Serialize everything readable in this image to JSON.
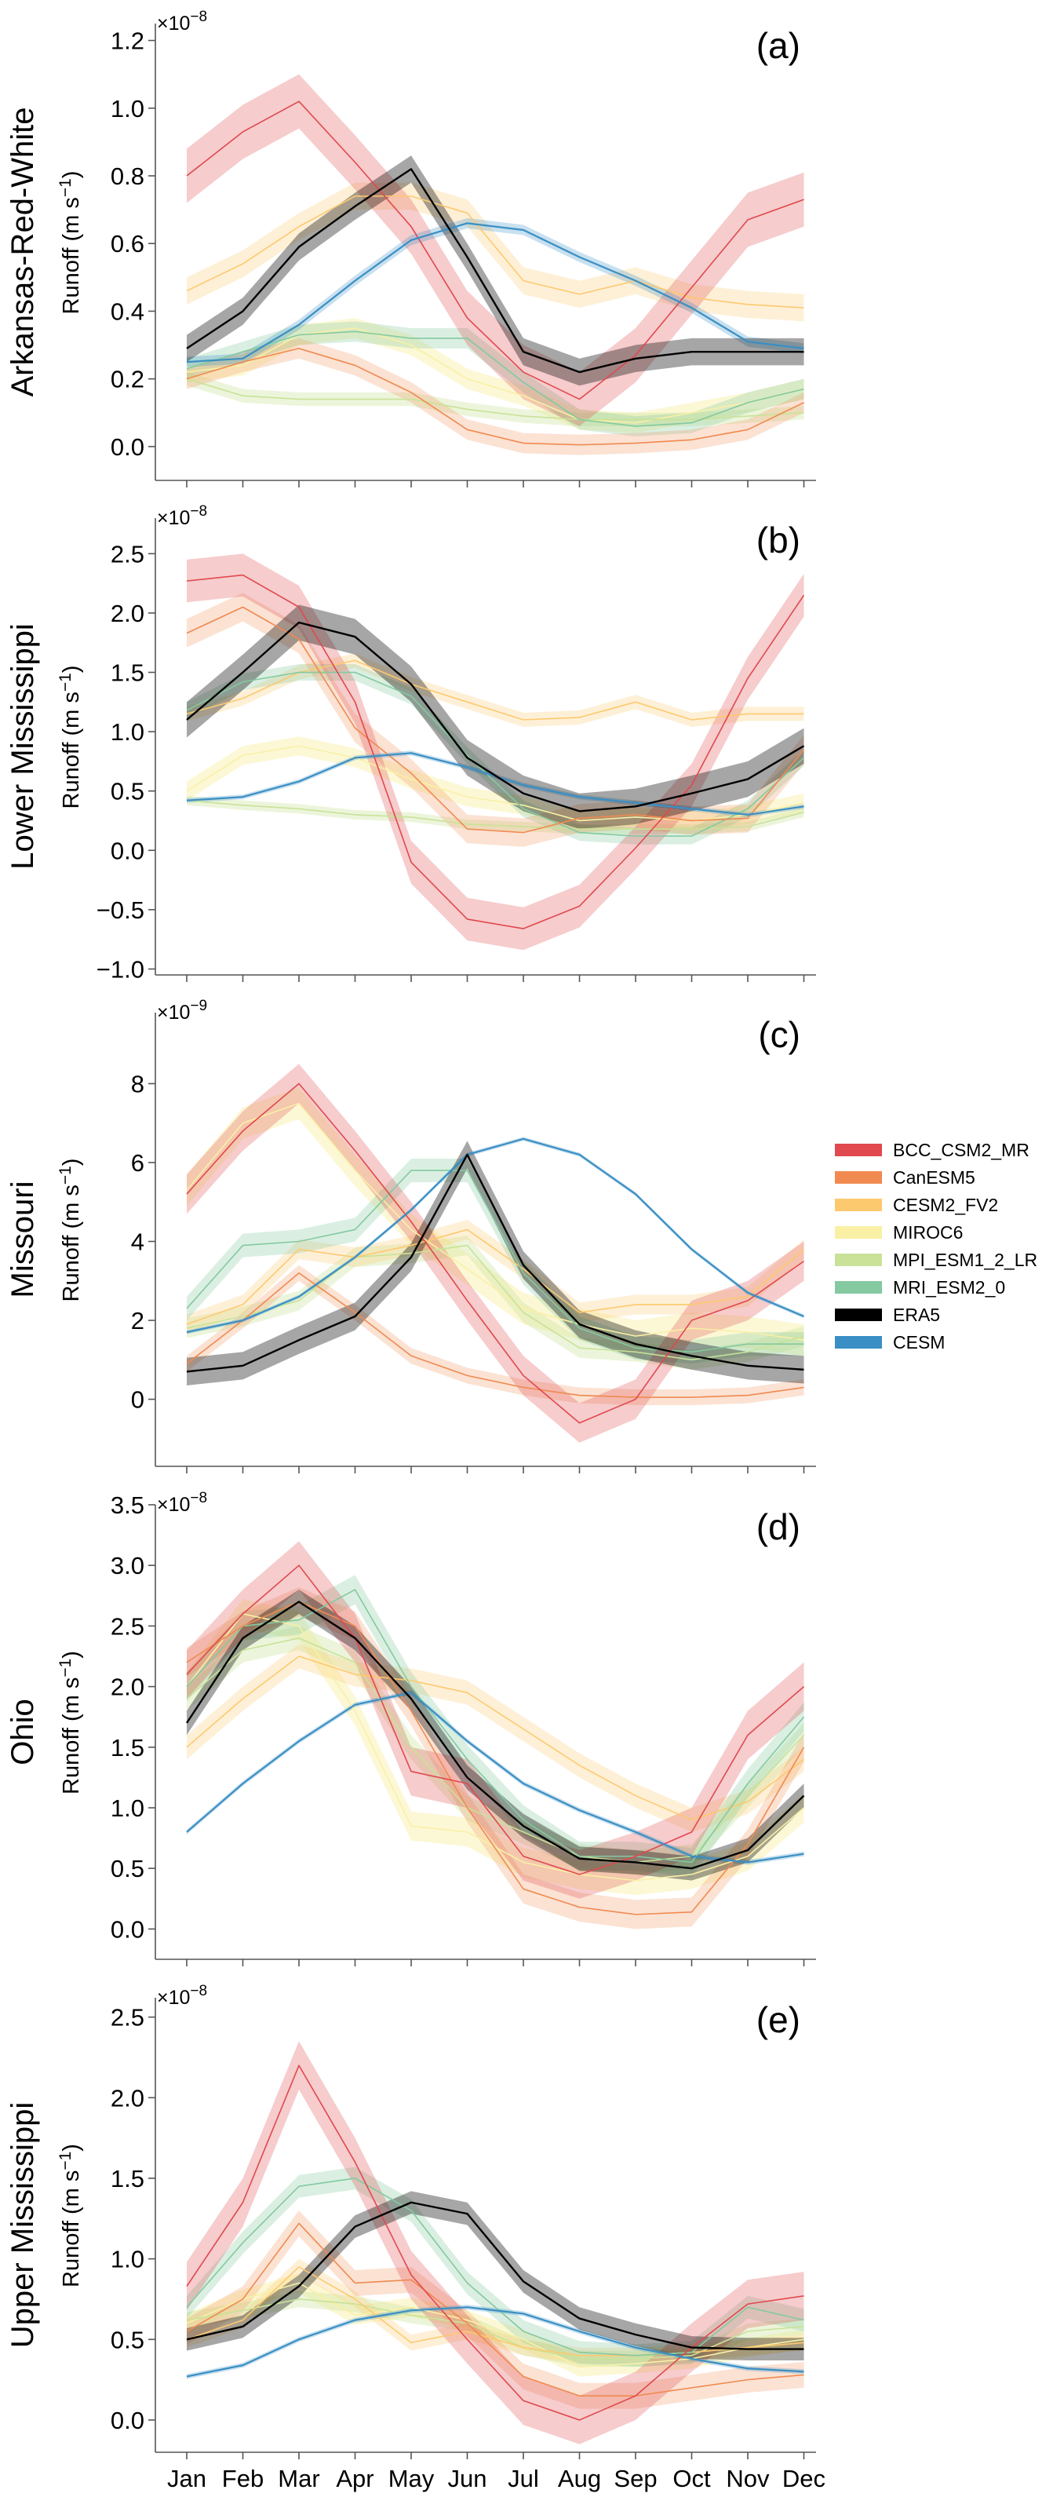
{
  "figure": {
    "months": [
      "Jan",
      "Feb",
      "Mar",
      "Apr",
      "May",
      "Jun",
      "Jul",
      "Aug",
      "Sep",
      "Oct",
      "Nov",
      "Dec"
    ],
    "ylabel_text": "Runoff (m s",
    "ylabel_exp": "−1",
    "ylabel_close": ")",
    "multiplier_prefix": "×10"
  },
  "legend": [
    {
      "name": "BCC_CSM2_MR",
      "color": "#e0494d"
    },
    {
      "name": "CanESM5",
      "color": "#f08a50"
    },
    {
      "name": "CESM2_FV2",
      "color": "#fdc96e"
    },
    {
      "name": "MIROC6",
      "color": "#f9f0a5"
    },
    {
      "name": "MPI_ESM1_2_LR",
      "color": "#c9e298"
    },
    {
      "name": "MRI_ESM2_0",
      "color": "#84c9a0"
    },
    {
      "name": "ERA5",
      "color": "#000000"
    },
    {
      "name": "CESM",
      "color": "#3a8fc4"
    }
  ],
  "chart_data": [
    {
      "type": "line",
      "panel": "(a)",
      "basin": "Arkansas-Red-White",
      "exponent": "−8",
      "ylim": [
        -0.1,
        1.25
      ],
      "yticks": [
        0.0,
        0.2,
        0.4,
        0.6,
        0.8,
        1.0,
        1.2
      ],
      "ytick_labels": [
        "0.0",
        "0.2",
        "0.4",
        "0.6",
        "0.8",
        "1.0",
        "1.2"
      ],
      "series": [
        {
          "name": "BCC_CSM2_MR",
          "values": [
            0.8,
            0.93,
            1.02,
            0.84,
            0.65,
            0.38,
            0.22,
            0.14,
            0.27,
            0.47,
            0.67,
            0.73
          ],
          "band": 0.08
        },
        {
          "name": "CanESM5",
          "values": [
            0.2,
            0.25,
            0.29,
            0.24,
            0.16,
            0.05,
            0.01,
            0.005,
            0.01,
            0.02,
            0.05,
            0.13
          ],
          "band": 0.03
        },
        {
          "name": "CESM2_FV2",
          "values": [
            0.46,
            0.54,
            0.65,
            0.74,
            0.74,
            0.69,
            0.49,
            0.45,
            0.49,
            0.44,
            0.42,
            0.41
          ],
          "band": 0.04
        },
        {
          "name": "MIROC6",
          "values": [
            0.22,
            0.24,
            0.33,
            0.35,
            0.3,
            0.2,
            0.15,
            0.08,
            0.07,
            0.1,
            0.13,
            0.17
          ],
          "band": 0.03
        },
        {
          "name": "MPI_ESM1_2_LR",
          "values": [
            0.2,
            0.15,
            0.14,
            0.14,
            0.14,
            0.11,
            0.09,
            0.08,
            0.08,
            0.08,
            0.09,
            0.1
          ],
          "band": 0.02
        },
        {
          "name": "MRI_ESM2_0",
          "values": [
            0.23,
            0.28,
            0.33,
            0.34,
            0.32,
            0.32,
            0.19,
            0.08,
            0.06,
            0.07,
            0.13,
            0.17
          ],
          "band": 0.03
        },
        {
          "name": "ERA5",
          "values": [
            0.29,
            0.4,
            0.59,
            0.71,
            0.82,
            0.56,
            0.28,
            0.22,
            0.26,
            0.28,
            0.28,
            0.28
          ],
          "band": 0.04
        },
        {
          "name": "CESM",
          "values": [
            0.25,
            0.26,
            0.36,
            0.49,
            0.61,
            0.66,
            0.64,
            0.56,
            0.49,
            0.41,
            0.31,
            0.29
          ],
          "band": 0.015
        }
      ]
    },
    {
      "type": "line",
      "panel": "(b)",
      "basin": "Lower Mississippi",
      "exponent": "−8",
      "ylim": [
        -1.05,
        2.8
      ],
      "yticks": [
        -1.0,
        -0.5,
        0.0,
        0.5,
        1.0,
        1.5,
        2.0,
        2.5
      ],
      "ytick_labels": [
        "−1.0",
        "−0.5",
        "0.0",
        "0.5",
        "1.0",
        "1.5",
        "2.0",
        "2.5"
      ],
      "series": [
        {
          "name": "BCC_CSM2_MR",
          "values": [
            2.27,
            2.32,
            2.05,
            1.25,
            -0.1,
            -0.58,
            -0.66,
            -0.47,
            0.02,
            0.55,
            1.45,
            2.15
          ],
          "band": 0.18
        },
        {
          "name": "CanESM5",
          "values": [
            1.83,
            2.05,
            1.78,
            1.03,
            0.65,
            0.18,
            0.15,
            0.27,
            0.3,
            0.25,
            0.27,
            0.85
          ],
          "band": 0.12
        },
        {
          "name": "CESM2_FV2",
          "values": [
            1.15,
            1.28,
            1.5,
            1.6,
            1.4,
            1.25,
            1.1,
            1.12,
            1.25,
            1.1,
            1.15,
            1.15
          ],
          "band": 0.06
        },
        {
          "name": "MIROC6",
          "values": [
            0.5,
            0.8,
            0.88,
            0.78,
            0.6,
            0.45,
            0.38,
            0.25,
            0.28,
            0.25,
            0.3,
            0.4
          ],
          "band": 0.08
        },
        {
          "name": "MPI_ESM1_2_LR",
          "values": [
            0.42,
            0.38,
            0.35,
            0.3,
            0.28,
            0.22,
            0.2,
            0.18,
            0.18,
            0.18,
            0.2,
            0.32
          ],
          "band": 0.04
        },
        {
          "name": "MRI_ESM2_0",
          "values": [
            1.18,
            1.42,
            1.5,
            1.5,
            1.3,
            0.8,
            0.35,
            0.15,
            0.12,
            0.12,
            0.35,
            0.78
          ],
          "band": 0.07
        },
        {
          "name": "ERA5",
          "values": [
            1.1,
            1.5,
            1.92,
            1.8,
            1.4,
            0.78,
            0.48,
            0.33,
            0.37,
            0.48,
            0.6,
            0.88
          ],
          "band": 0.15
        },
        {
          "name": "CESM",
          "values": [
            0.42,
            0.45,
            0.58,
            0.78,
            0.82,
            0.7,
            0.55,
            0.45,
            0.4,
            0.35,
            0.3,
            0.37
          ],
          "band": 0.02
        }
      ]
    },
    {
      "type": "line",
      "panel": "(c)",
      "basin": "Missouri",
      "exponent": "−9",
      "ylim": [
        -1.7,
        9.8
      ],
      "yticks": [
        0,
        2,
        4,
        6,
        8
      ],
      "ytick_labels": [
        "0",
        "2",
        "4",
        "6",
        "8"
      ],
      "series": [
        {
          "name": "BCC_CSM2_MR",
          "values": [
            5.2,
            6.8,
            8.0,
            6.3,
            4.5,
            2.5,
            0.6,
            -0.6,
            0.0,
            2.0,
            2.5,
            3.5
          ],
          "band": 0.5
        },
        {
          "name": "CanESM5",
          "values": [
            0.9,
            2.0,
            3.2,
            2.2,
            1.1,
            0.6,
            0.3,
            0.1,
            0.05,
            0.05,
            0.1,
            0.3
          ],
          "band": 0.2
        },
        {
          "name": "CESM2_FV2",
          "values": [
            1.9,
            2.4,
            3.8,
            3.6,
            3.9,
            4.3,
            3.3,
            2.2,
            2.4,
            2.4,
            2.6,
            3.8
          ],
          "band": 0.25
        },
        {
          "name": "MIROC6",
          "values": [
            5.3,
            7.0,
            7.5,
            5.8,
            4.3,
            3.3,
            2.3,
            1.9,
            1.6,
            1.8,
            1.7,
            1.5
          ],
          "band": 0.4
        },
        {
          "name": "MPI_ESM1_2_LR",
          "values": [
            1.8,
            2.1,
            2.5,
            3.6,
            3.7,
            3.9,
            2.2,
            1.3,
            1.2,
            1.0,
            1.2,
            1.6
          ],
          "band": 0.25
        },
        {
          "name": "MRI_ESM2_0",
          "values": [
            2.3,
            3.9,
            4.0,
            4.3,
            5.8,
            5.8,
            3.2,
            1.8,
            1.3,
            1.2,
            1.4,
            1.4
          ],
          "band": 0.3
        },
        {
          "name": "ERA5",
          "values": [
            0.7,
            0.85,
            1.5,
            2.1,
            3.6,
            6.2,
            3.4,
            1.9,
            1.4,
            1.1,
            0.85,
            0.75
          ],
          "band": 0.35
        },
        {
          "name": "CESM",
          "values": [
            1.7,
            2.0,
            2.6,
            3.6,
            4.8,
            6.2,
            6.6,
            6.2,
            5.2,
            3.8,
            2.7,
            2.1
          ],
          "band": 0.05
        }
      ]
    },
    {
      "type": "line",
      "panel": "(d)",
      "basin": "Ohio",
      "exponent": "−8",
      "ylim": [
        -0.25,
        3.5
      ],
      "yticks": [
        0.0,
        0.5,
        1.0,
        1.5,
        2.0,
        2.5,
        3.0,
        3.5
      ],
      "ytick_labels": [
        "0.0",
        "0.5",
        "1.0",
        "1.5",
        "2.0",
        "2.5",
        "3.0",
        "3.5"
      ],
      "series": [
        {
          "name": "BCC_CSM2_MR",
          "values": [
            2.1,
            2.6,
            3.0,
            2.4,
            1.3,
            1.2,
            0.6,
            0.45,
            0.6,
            0.8,
            1.6,
            2.0
          ],
          "band": 0.2
        },
        {
          "name": "CanESM5",
          "values": [
            2.2,
            2.5,
            2.7,
            2.5,
            1.8,
            1.0,
            0.33,
            0.18,
            0.12,
            0.14,
            0.7,
            1.5
          ],
          "band": 0.12
        },
        {
          "name": "CESM2_FV2",
          "values": [
            1.5,
            1.9,
            2.25,
            2.1,
            2.05,
            1.95,
            1.65,
            1.35,
            1.1,
            0.9,
            1.05,
            1.4
          ],
          "band": 0.1
        },
        {
          "name": "MIROC6",
          "values": [
            2.0,
            2.6,
            2.5,
            1.8,
            0.85,
            0.8,
            0.55,
            0.45,
            0.4,
            0.45,
            0.6,
            1.0
          ],
          "band": 0.12
        },
        {
          "name": "MPI_ESM1_2_LR",
          "values": [
            1.9,
            2.3,
            2.4,
            2.2,
            1.5,
            1.0,
            0.8,
            0.6,
            0.55,
            0.6,
            1.1,
            1.6
          ],
          "band": 0.1
        },
        {
          "name": "MRI_ESM2_0",
          "values": [
            2.0,
            2.5,
            2.55,
            2.8,
            2.0,
            1.4,
            0.9,
            0.6,
            0.6,
            0.55,
            1.2,
            1.75
          ],
          "band": 0.12
        },
        {
          "name": "ERA5",
          "values": [
            1.7,
            2.4,
            2.7,
            2.4,
            1.9,
            1.25,
            0.85,
            0.58,
            0.55,
            0.5,
            0.65,
            1.1
          ],
          "band": 0.1
        },
        {
          "name": "CESM",
          "values": [
            0.8,
            1.2,
            1.55,
            1.85,
            1.95,
            1.55,
            1.2,
            0.98,
            0.8,
            0.6,
            0.55,
            0.62
          ],
          "band": 0.02
        }
      ]
    },
    {
      "type": "line",
      "panel": "(e)",
      "basin": "Upper Mississippi",
      "exponent": "−8",
      "ylim": [
        -0.2,
        2.62
      ],
      "yticks": [
        0.0,
        0.5,
        1.0,
        1.5,
        2.0,
        2.5
      ],
      "ytick_labels": [
        "0.0",
        "0.5",
        "1.0",
        "1.5",
        "2.0",
        "2.5"
      ],
      "series": [
        {
          "name": "BCC_CSM2_MR",
          "values": [
            0.83,
            1.35,
            2.2,
            1.6,
            0.9,
            0.5,
            0.12,
            0.0,
            0.15,
            0.45,
            0.72,
            0.77
          ],
          "band": 0.15
        },
        {
          "name": "CanESM5",
          "values": [
            0.55,
            0.75,
            1.22,
            0.85,
            0.87,
            0.6,
            0.27,
            0.15,
            0.15,
            0.2,
            0.25,
            0.28
          ],
          "band": 0.08
        },
        {
          "name": "CESM2_FV2",
          "values": [
            0.5,
            0.62,
            0.95,
            0.75,
            0.48,
            0.55,
            0.45,
            0.4,
            0.4,
            0.42,
            0.45,
            0.48
          ],
          "band": 0.05
        },
        {
          "name": "MIROC6",
          "values": [
            0.6,
            0.75,
            0.85,
            0.65,
            0.7,
            0.62,
            0.5,
            0.33,
            0.35,
            0.38,
            0.45,
            0.5
          ],
          "band": 0.06
        },
        {
          "name": "MPI_ESM1_2_LR",
          "values": [
            0.62,
            0.68,
            0.75,
            0.72,
            0.65,
            0.6,
            0.45,
            0.38,
            0.38,
            0.4,
            0.55,
            0.58
          ],
          "band": 0.05
        },
        {
          "name": "MRI_ESM2_0",
          "values": [
            0.7,
            1.1,
            1.45,
            1.5,
            1.3,
            0.85,
            0.55,
            0.42,
            0.4,
            0.42,
            0.7,
            0.62
          ],
          "band": 0.07
        },
        {
          "name": "ERA5",
          "values": [
            0.5,
            0.58,
            0.83,
            1.2,
            1.35,
            1.28,
            0.86,
            0.63,
            0.53,
            0.45,
            0.44,
            0.44
          ],
          "band": 0.07
        },
        {
          "name": "CESM",
          "values": [
            0.27,
            0.34,
            0.5,
            0.62,
            0.68,
            0.7,
            0.66,
            0.55,
            0.45,
            0.38,
            0.32,
            0.3
          ],
          "band": 0.015
        }
      ]
    }
  ]
}
